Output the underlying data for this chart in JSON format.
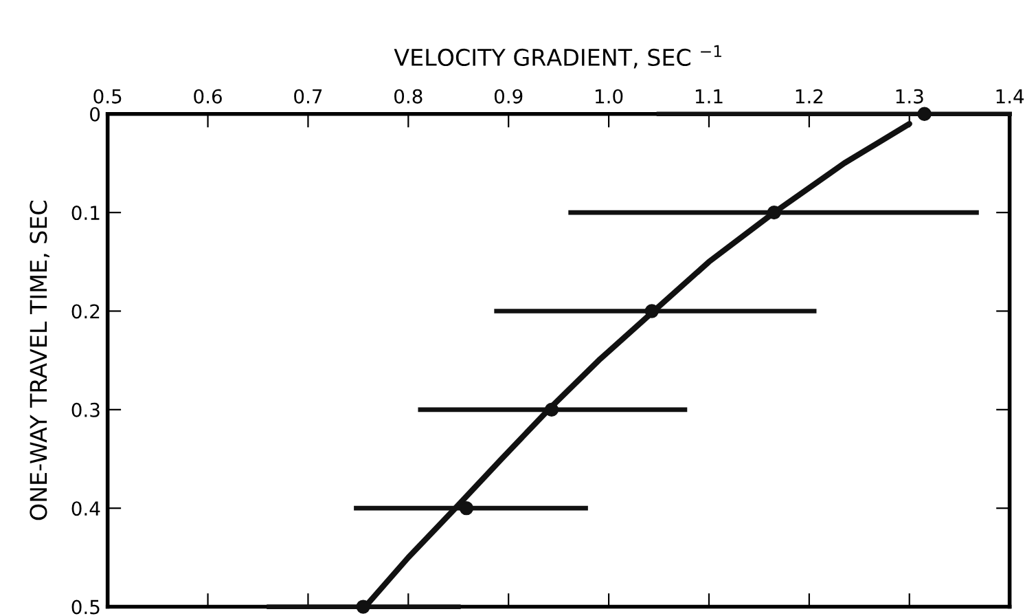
{
  "chart_data": {
    "type": "scatter",
    "xlabel": "VELOCITY GRADIENT, SEC $^{−1}$",
    "ylabel": "ONE-WAY TRAVEL TIME, SEC",
    "xlim": [
      0.5,
      1.4
    ],
    "ylim": [
      0.5,
      0
    ],
    "xticks": [
      0.5,
      0.6,
      0.7,
      0.8,
      0.9,
      {
        "value": 1.0,
        "label": "1.0"
      },
      1.1,
      1.2,
      1.3,
      1.4
    ],
    "yticks": [
      0,
      0.1,
      0.2,
      0.3,
      0.4,
      0.5
    ],
    "tick_labels": "xy",
    "grid": false,
    "legend": false,
    "series": [
      {
        "type": "line",
        "color": "#111111",
        "marker": "none",
        "line_style": "solid",
        "x": [
          1.3,
          1.235,
          1.165,
          1.1,
          1.045,
          0.99,
          0.94,
          0.893,
          0.847,
          0.8,
          0.757
        ],
        "values": [
          0.01,
          0.05,
          0.1,
          0.15,
          0.2,
          0.25,
          0.3,
          0.35,
          0.4,
          0.45,
          0.5
        ]
      },
      {
        "color": "#111111",
        "marker": "circle",
        "x": [
          1.315,
          1.165,
          1.043,
          0.943,
          0.858,
          0.755
        ],
        "values": [
          0,
          0.1,
          0.2,
          0.3,
          0.4,
          0.5
        ],
        "xerrors": [
          [
            1.05,
            1.4
          ],
          [
            0.962,
            1.367
          ],
          [
            0.888,
            1.205
          ],
          [
            0.812,
            1.076
          ],
          [
            0.748,
            0.977
          ],
          [
            0.661,
            0.85
          ]
        ]
      }
    ]
  }
}
